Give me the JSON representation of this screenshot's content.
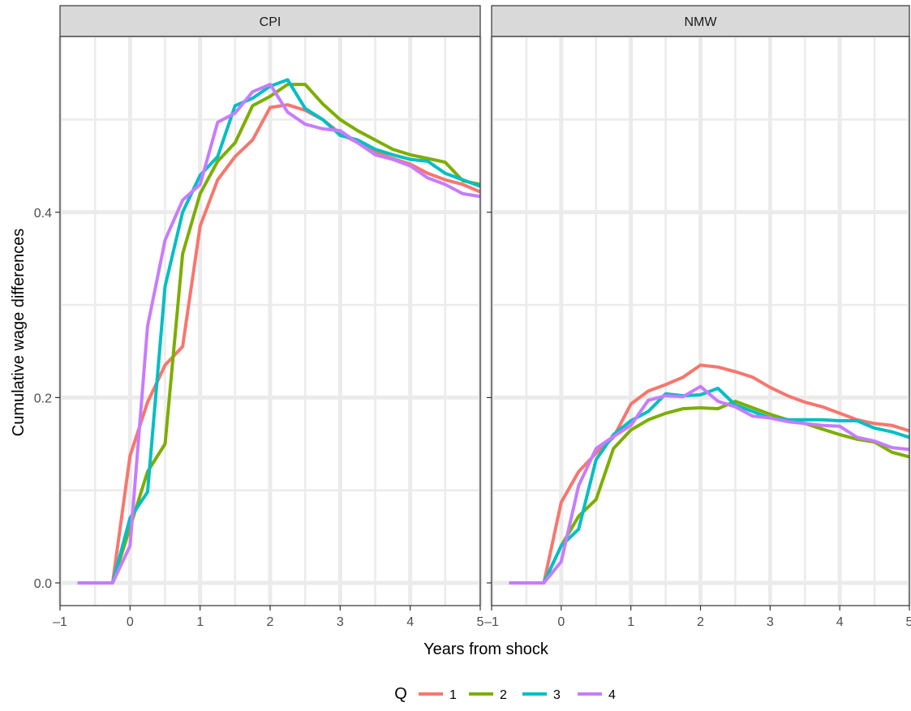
{
  "chart_data": {
    "type": "line",
    "xlabel": "Years from shock",
    "ylabel": "Cumulative wage differences",
    "xlim": [
      -1,
      5
    ],
    "ylim": [
      -0.02,
      0.61
    ],
    "xticks": [
      -1,
      0,
      1,
      2,
      3,
      4,
      5
    ],
    "xtick_labels": [
      "–1",
      "0",
      "1",
      "2",
      "3",
      "4",
      "5"
    ],
    "yticks": [
      0.0,
      0.2,
      0.4
    ],
    "ytick_labels": [
      "0.0",
      "0.2",
      "0.4"
    ],
    "grid": true,
    "legend": {
      "title": "Q",
      "position": "bottom",
      "entries": [
        "1",
        "2",
        "3",
        "4"
      ]
    },
    "colors": {
      "1": "#F8766D",
      "2": "#7CAE00",
      "3": "#00BFC4",
      "4": "#C77CFF"
    },
    "x": [
      -0.75,
      -0.5,
      -0.25,
      0,
      0.25,
      0.5,
      0.75,
      1,
      1.25,
      1.5,
      1.75,
      2,
      2.25,
      2.5,
      2.75,
      3,
      3.25,
      3.5,
      3.75,
      4,
      4.25,
      4.5,
      4.75,
      5
    ],
    "panels": [
      {
        "strip": "CPI",
        "series": [
          {
            "name": "1",
            "values": [
              0,
              0,
              0,
              0.137,
              0.195,
              0.235,
              0.255,
              0.385,
              0.435,
              0.46,
              0.478,
              0.513,
              0.516,
              0.51,
              0.5,
              0.485,
              0.475,
              0.465,
              0.458,
              0.452,
              0.442,
              0.435,
              0.43,
              0.422
            ]
          },
          {
            "name": "2",
            "values": [
              0,
              0,
              0,
              0.06,
              0.12,
              0.15,
              0.355,
              0.42,
              0.455,
              0.475,
              0.515,
              0.525,
              0.538,
              0.538,
              0.517,
              0.5,
              0.488,
              0.478,
              0.468,
              0.462,
              0.458,
              0.454,
              0.434,
              0.43
            ]
          },
          {
            "name": "3",
            "values": [
              0,
              0,
              0,
              0.07,
              0.098,
              0.32,
              0.4,
              0.44,
              0.46,
              0.515,
              0.523,
              0.536,
              0.543,
              0.512,
              0.5,
              0.483,
              0.478,
              0.468,
              0.462,
              0.457,
              0.455,
              0.442,
              0.435,
              0.428
            ]
          },
          {
            "name": "4",
            "values": [
              0,
              0,
              0,
              0.04,
              0.277,
              0.37,
              0.413,
              0.43,
              0.497,
              0.507,
              0.53,
              0.538,
              0.508,
              0.495,
              0.49,
              0.488,
              0.475,
              0.462,
              0.457,
              0.45,
              0.437,
              0.43,
              0.42,
              0.417
            ]
          }
        ]
      },
      {
        "strip": "NMW",
        "series": [
          {
            "name": "1",
            "values": [
              0,
              0,
              0,
              0.087,
              0.12,
              0.14,
              0.157,
              0.193,
              0.207,
              0.214,
              0.222,
              0.235,
              0.233,
              0.228,
              0.222,
              0.211,
              0.202,
              0.195,
              0.19,
              0.183,
              0.176,
              0.172,
              0.17,
              0.164
            ]
          },
          {
            "name": "2",
            "values": [
              0,
              0,
              0,
              0.04,
              0.072,
              0.09,
              0.145,
              0.165,
              0.176,
              0.183,
              0.188,
              0.189,
              0.188,
              0.196,
              0.189,
              0.182,
              0.176,
              0.172,
              0.166,
              0.16,
              0.155,
              0.152,
              0.141,
              0.136
            ]
          },
          {
            "name": "3",
            "values": [
              0,
              0,
              0,
              0.04,
              0.058,
              0.133,
              0.16,
              0.175,
              0.185,
              0.204,
              0.202,
              0.203,
              0.21,
              0.192,
              0.185,
              0.178,
              0.176,
              0.176,
              0.176,
              0.175,
              0.175,
              0.167,
              0.163,
              0.157
            ]
          },
          {
            "name": "4",
            "values": [
              0,
              0,
              0,
              0.023,
              0.105,
              0.145,
              0.158,
              0.17,
              0.197,
              0.202,
              0.201,
              0.212,
              0.196,
              0.19,
              0.18,
              0.178,
              0.174,
              0.172,
              0.17,
              0.169,
              0.157,
              0.153,
              0.146,
              0.144
            ]
          }
        ]
      }
    ]
  }
}
